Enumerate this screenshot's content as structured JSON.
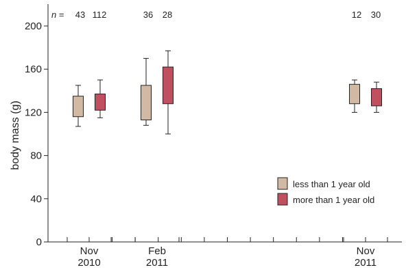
{
  "chart_data": {
    "type": "box",
    "ylabel": "body mass (g)",
    "xlabel": "",
    "ylim": [
      0,
      200
    ],
    "yticks": [
      0,
      40,
      80,
      120,
      160,
      200
    ],
    "n_prefix": "n",
    "n_equals": "=",
    "groups": [
      {
        "date": [
          "Nov",
          "2010"
        ],
        "n": [
          "43",
          "112"
        ],
        "boxes": [
          {
            "series": "less than 1 year old",
            "min": 107,
            "q1": 116,
            "median": 116,
            "q3": 135,
            "max": 145
          },
          {
            "series": "more than 1 year old",
            "min": 115,
            "q1": 122,
            "median": 122,
            "q3": 137,
            "max": 150
          }
        ]
      },
      {
        "date": [
          "Feb",
          "2011"
        ],
        "n": [
          "36",
          "28"
        ],
        "boxes": [
          {
            "series": "less than 1 year old",
            "min": 108,
            "q1": 113,
            "median": 113,
            "q3": 145,
            "max": 170
          },
          {
            "series": "more than 1 year old",
            "min": 100,
            "q1": 128,
            "median": 128,
            "q3": 162,
            "max": 177
          }
        ]
      },
      {
        "date": [
          "Nov",
          "2011"
        ],
        "n": [
          "12",
          "30"
        ],
        "boxes": [
          {
            "series": "less than 1 year old",
            "min": 120,
            "q1": 128,
            "median": 128,
            "q3": 146,
            "max": 150
          },
          {
            "series": "more than 1 year old",
            "min": 120,
            "q1": 126,
            "median": 126,
            "q3": 142,
            "max": 148
          }
        ]
      }
    ],
    "legend": [
      {
        "label": "less than 1 year old",
        "color": "#d2b9a3"
      },
      {
        "label": "more than 1 year old",
        "color": "#c0505f"
      }
    ],
    "legend_position": "bottom-right",
    "grid": false
  }
}
